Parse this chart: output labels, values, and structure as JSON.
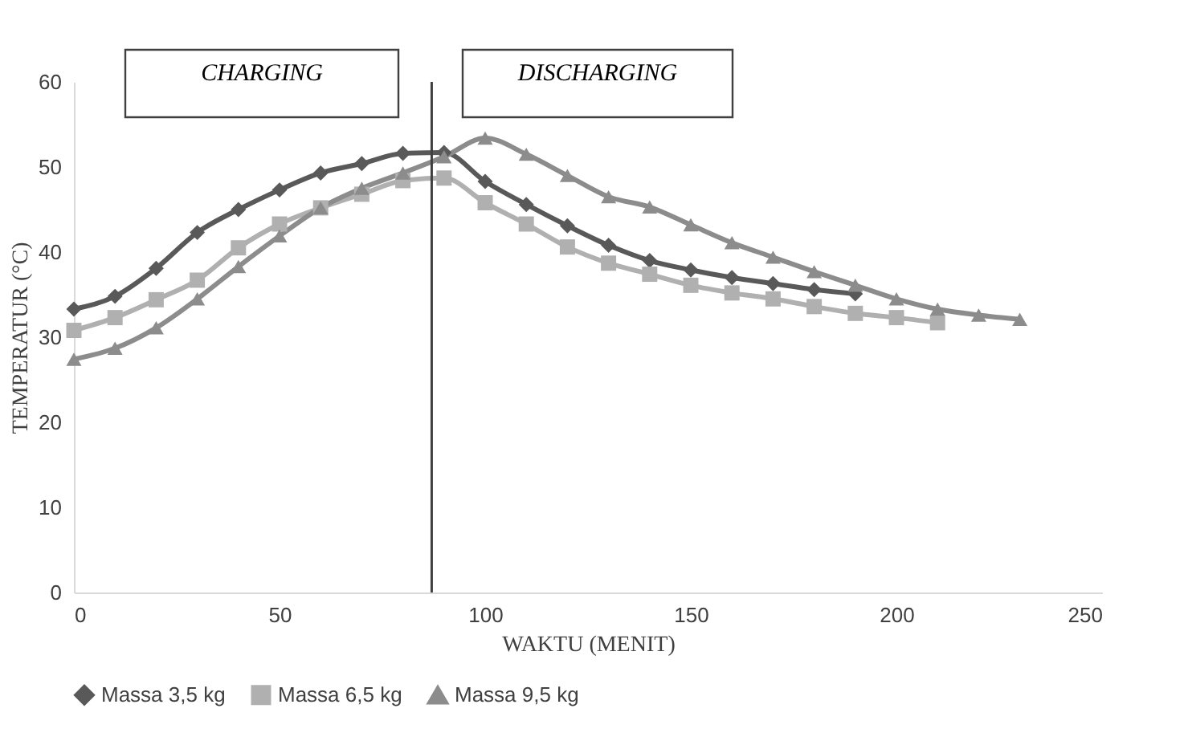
{
  "chart_data": {
    "type": "line",
    "xlabel": "WAKTU (MENIT)",
    "ylabel": "TEMPERATUR (°C)",
    "annotations": [
      "CHARGING",
      "DISCHARGING"
    ],
    "xlim": [
      0,
      250
    ],
    "xticks": [
      0,
      50,
      100,
      150,
      200,
      250
    ],
    "ylim": [
      0,
      60
    ],
    "yticks": [
      0,
      10,
      20,
      30,
      40,
      50,
      60
    ],
    "grid": false,
    "legend": "bottom",
    "ref_lines": [
      {
        "axis": "x",
        "value": 87,
        "color": "#404040"
      }
    ],
    "series": [
      {
        "name": "Massa 3,5 kg",
        "color": "#595959",
        "marker": "diamond",
        "x": [
          0,
          10,
          20,
          30,
          40,
          50,
          60,
          70,
          80,
          90,
          100,
          110,
          120,
          130,
          140,
          150,
          160,
          170,
          180,
          190
        ],
        "values": [
          33.3,
          34.8,
          38.1,
          42.3,
          45,
          47.3,
          49.3,
          50.4,
          51.6,
          51.7,
          48.3,
          45.6,
          43.1,
          40.8,
          39,
          37.9,
          37,
          36.3,
          35.6,
          35.1
        ]
      },
      {
        "name": "Massa 6,5 kg",
        "color": "#b0b0b0",
        "marker": "square",
        "x": [
          0,
          10,
          20,
          30,
          40,
          50,
          60,
          70,
          80,
          90,
          100,
          110,
          120,
          130,
          140,
          150,
          160,
          170,
          180,
          190,
          200,
          210
        ],
        "values": [
          30.8,
          32.3,
          34.4,
          36.7,
          40.5,
          43.3,
          45.2,
          46.8,
          48.4,
          48.7,
          45.8,
          43.3,
          40.6,
          38.7,
          37.4,
          36.1,
          35.2,
          34.5,
          33.6,
          32.8,
          32.3,
          31.7
        ]
      },
      {
        "name": "Massa 9,5 kg",
        "color": "#8c8c8c",
        "marker": "triangle",
        "x": [
          0,
          10,
          20,
          30,
          40,
          50,
          60,
          70,
          80,
          90,
          100,
          110,
          120,
          130,
          140,
          150,
          160,
          170,
          180,
          190,
          200,
          210,
          220,
          230
        ],
        "values": [
          27.4,
          28.7,
          31.1,
          34.5,
          38.3,
          41.9,
          45.2,
          47.5,
          49.3,
          51.2,
          53.4,
          51.5,
          49,
          46.5,
          45.3,
          43.2,
          41.1,
          39.4,
          37.7,
          36.1,
          34.5,
          33.3,
          32.6,
          32.1
        ]
      }
    ]
  }
}
